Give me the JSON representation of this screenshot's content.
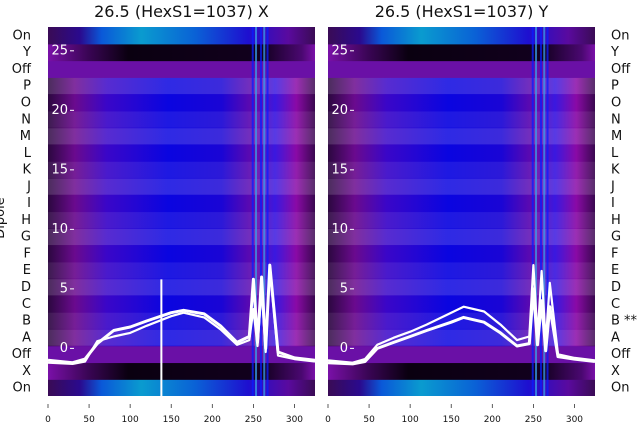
{
  "chart_data": [
    {
      "type": "heatmap",
      "title": "26.5 (HexS1=1037) X",
      "ylabel": "Dipole",
      "row_labels": [
        "On",
        "X",
        "Off",
        "A",
        "B",
        "C",
        "D",
        "E",
        "F",
        "G",
        "H",
        "I",
        "J",
        "K",
        "L",
        "M",
        "N",
        "O",
        "P",
        "Off",
        "Y",
        "On"
      ],
      "xlim": [
        0,
        325
      ],
      "ylim": [
        -4,
        27
      ],
      "x_ticks": [
        0,
        50,
        100,
        150,
        200,
        250,
        300
      ],
      "y_ticks": [
        0,
        5,
        10,
        15,
        20,
        25
      ],
      "series": [
        {
          "x": [
            0,
            30,
            45,
            60,
            80,
            100,
            120,
            150,
            165,
            190,
            210,
            230,
            245,
            250,
            255,
            260,
            265,
            270,
            280,
            300,
            325
          ],
          "y": [
            -1.2,
            -1.3,
            -1.1,
            0.6,
            1.0,
            1.3,
            1.9,
            2.7,
            3.0,
            2.6,
            1.6,
            0.3,
            0.7,
            3.3,
            0.2,
            5.0,
            -0.3,
            6.8,
            -0.6,
            -0.9,
            -1.1
          ]
        },
        {
          "x": [
            0,
            30,
            45,
            60,
            80,
            100,
            120,
            150,
            165,
            190,
            210,
            230,
            245,
            250,
            255,
            260,
            265,
            270,
            280,
            300,
            325
          ],
          "y": [
            -1.0,
            -1.2,
            -0.9,
            0.4,
            1.5,
            1.8,
            2.3,
            3.0,
            3.2,
            2.9,
            1.9,
            0.5,
            1.0,
            5.8,
            0.5,
            6.0,
            0.0,
            7.0,
            -0.3,
            -0.8,
            -1.0
          ]
        }
      ],
      "spikes": [
        {
          "x": 138,
          "y": 5.8
        },
        {
          "x": 138,
          "y": -4.0
        }
      ]
    },
    {
      "type": "heatmap",
      "title": "26.5 (HexS1=1037) Y",
      "row_labels": [
        "On",
        "X",
        "Off",
        "A",
        "B **",
        "C",
        "D",
        "E",
        "F",
        "G",
        "H",
        "I",
        "J",
        "K",
        "L",
        "M",
        "N",
        "O",
        "P",
        "Off",
        "Y",
        "On"
      ],
      "xlim": [
        0,
        325
      ],
      "ylim": [
        -4,
        27
      ],
      "x_ticks": [
        0,
        50,
        100,
        150,
        200,
        250,
        300
      ],
      "y_ticks": [
        0,
        5,
        10,
        15,
        20,
        25
      ],
      "series": [
        {
          "x": [
            0,
            30,
            45,
            60,
            80,
            100,
            120,
            150,
            165,
            190,
            210,
            230,
            245,
            250,
            255,
            260,
            265,
            270,
            280,
            300,
            325
          ],
          "y": [
            -1.0,
            -1.2,
            -0.9,
            0.3,
            0.9,
            1.4,
            2.0,
            3.0,
            3.5,
            3.1,
            2.0,
            0.7,
            1.0,
            7.0,
            1.0,
            6.5,
            0.5,
            5.5,
            -0.5,
            -0.8,
            -1.0
          ]
        },
        {
          "x": [
            0,
            30,
            45,
            60,
            80,
            100,
            120,
            150,
            165,
            190,
            210,
            230,
            245,
            250,
            255,
            260,
            265,
            270,
            280,
            300,
            325
          ],
          "y": [
            -1.2,
            -1.3,
            -1.1,
            0.0,
            0.5,
            1.0,
            1.5,
            2.2,
            2.6,
            2.2,
            1.3,
            0.2,
            0.4,
            5.0,
            0.3,
            4.0,
            -0.2,
            3.5,
            -0.7,
            -0.9,
            -1.1
          ]
        }
      ],
      "spikes": []
    }
  ]
}
